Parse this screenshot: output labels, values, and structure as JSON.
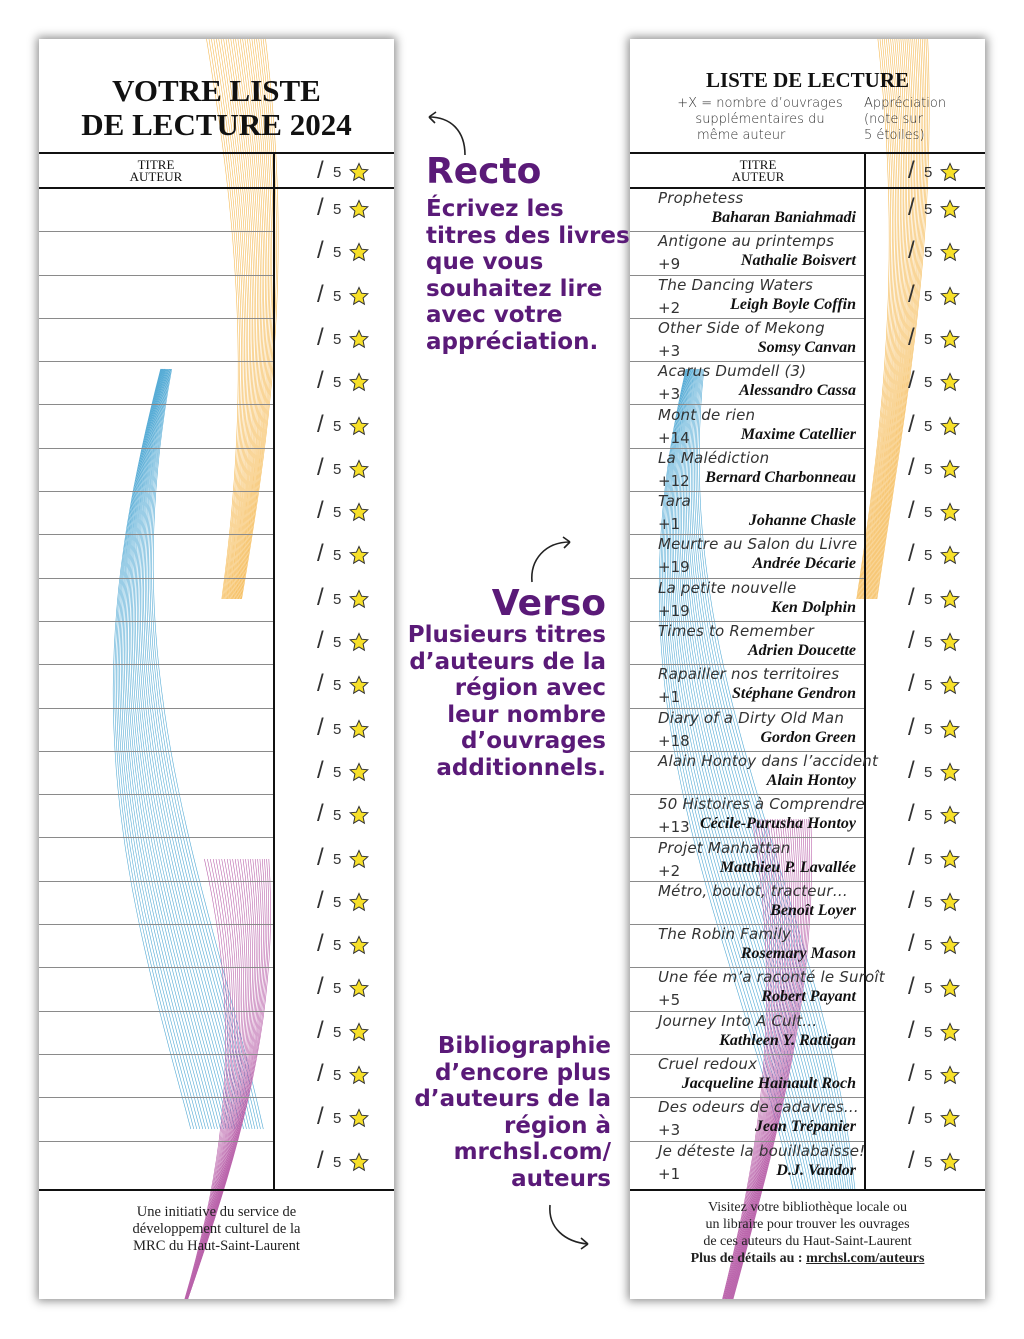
{
  "recto": {
    "title_line1": "VOTRE LISTE",
    "title_line2": "DE LECTURE 2024",
    "col_titre": "TITRE",
    "col_auteur": "AUTEUR",
    "rating_slash": "/",
    "rating_max": "5",
    "footer_line1": "Une initiative du service de",
    "footer_line2": "développement culturel de la",
    "footer_line3": "MRC du Haut-Saint-Laurent"
  },
  "verso": {
    "title": "LISTE DE LECTURE",
    "legend_left_1": "+X = nombre d’ouvrages",
    "legend_left_2": "supplémentaires du",
    "legend_left_3": "même auteur",
    "legend_right_1": "Appréciation",
    "legend_right_2": "(note sur",
    "legend_right_3": "5 étoiles)",
    "col_titre": "TITRE",
    "col_auteur": "AUTEUR",
    "rating_slash": "/",
    "rating_max": "5",
    "books": [
      {
        "title": "Prophetess",
        "extra": "",
        "author": "Baharan Baniahmadi"
      },
      {
        "title": "Antigone au printemps",
        "extra": "+9",
        "author": "Nathalie Boisvert"
      },
      {
        "title": "The Dancing Waters",
        "extra": "+2",
        "author": "Leigh Boyle Coffin"
      },
      {
        "title": "Other Side of Mekong",
        "extra": "+3",
        "author": "Somsy Canvan"
      },
      {
        "title": "Acarus Dumdell (3)",
        "extra": "+3",
        "author": "Alessandro Cassa"
      },
      {
        "title": "Mont de rien",
        "extra": "+14",
        "author": "Maxime Catellier"
      },
      {
        "title": "La Malédiction",
        "extra": "+12",
        "author": "Bernard Charbonneau"
      },
      {
        "title": "Tara",
        "extra": "+1",
        "author": "Johanne Chasle"
      },
      {
        "title": "Meurtre au Salon du Livre",
        "extra": "+19",
        "author": "Andrée Décarie"
      },
      {
        "title": "La petite nouvelle",
        "extra": "+19",
        "author": "Ken Dolphin"
      },
      {
        "title": "Times to Remember",
        "extra": "",
        "author": "Adrien Doucette"
      },
      {
        "title": "Rapailler nos territoires",
        "extra": "+1",
        "author": "Stéphane Gendron"
      },
      {
        "title": "Diary of a Dirty Old Man",
        "extra": "+18",
        "author": "Gordon Green"
      },
      {
        "title": "Alain Hontoy dans l’accident",
        "extra": "",
        "author": "Alain Hontoy"
      },
      {
        "title": "50 Histoires à Comprendre",
        "extra": "+13",
        "author": "Cécile-Purusha Hontoy"
      },
      {
        "title": "Projet Manhattan",
        "extra": "+2",
        "author": "Matthieu P. Lavallée"
      },
      {
        "title": "Métro, boulot, tracteur…",
        "extra": "",
        "author": "Benoît Loyer"
      },
      {
        "title": "The Robin Family",
        "extra": "",
        "author": "Rosemary Mason"
      },
      {
        "title": "Une fée m’a raconté le Suroît",
        "extra": "+5",
        "author": "Robert Payant"
      },
      {
        "title": "Journey Into A Cult…",
        "extra": "",
        "author": "Kathleen Y. Rattigan"
      },
      {
        "title": "Cruel redoux",
        "extra": "",
        "author": "Jacqueline Hainault Roch"
      },
      {
        "title": "Des odeurs de cadavres…",
        "extra": "+3",
        "author": "Jean Trépanier"
      },
      {
        "title": "Je déteste la bouillabaisse!",
        "extra": "+1",
        "author": "D.J. Vandor"
      }
    ],
    "footer_line1": "Visitez votre bibliothèque locale ou",
    "footer_line2": "un libraire pour trouver les ouvrages",
    "footer_line3": "de ces auteurs du Haut-Saint-Laurent",
    "footer_line4_prefix": "Plus de détails au : ",
    "footer_link": "mrchsl.com/auteurs"
  },
  "annotations": {
    "recto_title": "Recto",
    "recto_lines": [
      "Écrivez les",
      "titres des livres",
      "que vous",
      "souhaitez lire",
      "avec votre",
      "appréciation."
    ],
    "verso_title": "Verso",
    "verso_lines": [
      "Plusieurs titres",
      "d’auteurs de la",
      "région avec",
      "leur nombre",
      "d’ouvrages",
      "additionnels."
    ],
    "biblio_lines": [
      "Bibliographie",
      "d’encore plus",
      "d’auteurs de la",
      "région à",
      "mrchsl.com/",
      "auteurs"
    ]
  },
  "colors": {
    "accent_purple": "#5a1a78",
    "wave_orange": "#f2a31c",
    "wave_blue": "#1e90c8",
    "wave_purple": "#a3308f",
    "star_fill": "#f7e02a"
  }
}
